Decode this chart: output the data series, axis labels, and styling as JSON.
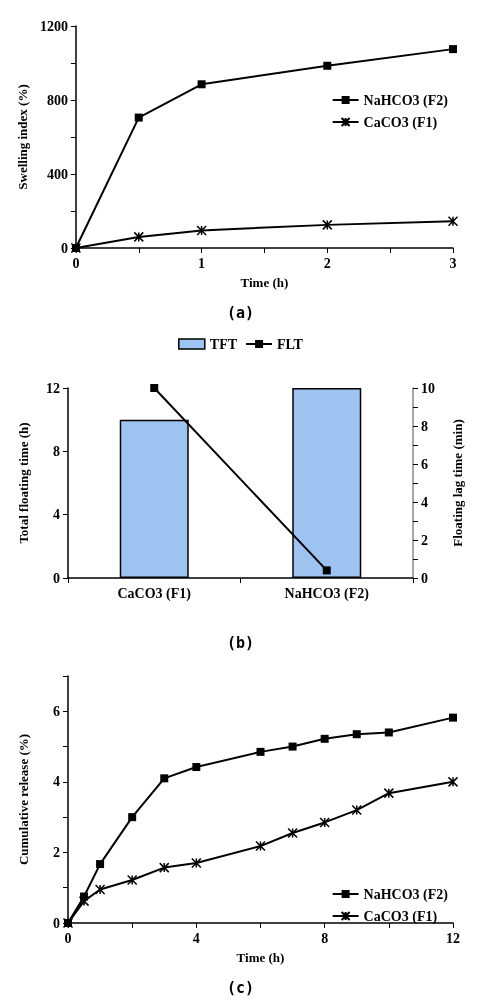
{
  "chart_data": [
    {
      "type": "line",
      "xlabel": "Time (h)",
      "ylabel": "Swelling index (%)",
      "annotations": [
        "(a)"
      ],
      "xlim": [
        0,
        3
      ],
      "xticks": [
        0,
        {
          "value": 0.5,
          "label": null
        },
        1,
        {
          "value": 1.5,
          "label": null
        },
        2,
        {
          "value": 2.5,
          "label": null
        },
        3
      ],
      "ylim": [
        0,
        1200
      ],
      "yticks": [
        0,
        {
          "value": 200,
          "label": null
        },
        400,
        {
          "value": 600,
          "label": null
        },
        800,
        {
          "value": 1000,
          "label": null
        },
        1200
      ],
      "grid": false,
      "legend": "right",
      "line_style": "solid",
      "series": [
        {
          "name": "NaHCO3 (F2)",
          "color": "#000000",
          "marker": "square",
          "x": [
            0,
            0.5,
            1,
            2,
            3
          ],
          "values": [
            0,
            705,
            885,
            985,
            1075
          ]
        },
        {
          "name": "CaCO3 (F1)",
          "color": "#000000",
          "marker": "cross",
          "x": [
            0,
            0.5,
            1,
            2,
            3
          ],
          "values": [
            0,
            60,
            95,
            125,
            145
          ]
        }
      ]
    },
    {
      "type": "bar",
      "ylabel": "Total floating time (h)",
      "y2label": "Floating lag time (min)",
      "annotations": [
        "(b)"
      ],
      "categories": [
        "CaCO3 (F1)",
        "NaHCO3 (F2)"
      ],
      "ylim": [
        0,
        12
      ],
      "yticks": [
        0,
        4,
        8,
        12
      ],
      "y2lim": [
        0,
        10
      ],
      "y2ticks": [
        0,
        {
          "value": 1,
          "label": null
        },
        2,
        {
          "value": 3,
          "label": null
        },
        4,
        {
          "value": 5,
          "label": null
        },
        6,
        {
          "value": 7,
          "label": null
        },
        8,
        {
          "value": 9,
          "label": null
        },
        10
      ],
      "grid": false,
      "legend": "top",
      "series": [
        {
          "name": "TFT",
          "type": "bar",
          "color": "#9fc3f0",
          "values": [
            10,
            12
          ]
        },
        {
          "name": "FLT",
          "type": "line",
          "axis": "y2",
          "color": "#000000",
          "marker": "square",
          "values": [
            10,
            0.4
          ]
        }
      ]
    },
    {
      "type": "line",
      "xlabel": "Time (h)",
      "ylabel": "Cumulative release (%)",
      "annotations": [
        "(c)"
      ],
      "xlim": [
        0,
        12
      ],
      "xticks": [
        0,
        {
          "value": 2,
          "label": null
        },
        4,
        {
          "value": 6,
          "label": null
        },
        8,
        {
          "value": 10,
          "label": null
        },
        12
      ],
      "ylim": [
        0,
        7
      ],
      "yticks": [
        0,
        {
          "value": 1,
          "label": null
        },
        2,
        {
          "value": 3,
          "label": null
        },
        4,
        {
          "value": 5,
          "label": null
        },
        6,
        {
          "value": 7,
          "label": null
        }
      ],
      "grid": false,
      "legend": "bottom right",
      "line_style": "solid",
      "series": [
        {
          "name": "NaHCO3 (F2)",
          "color": "#000000",
          "marker": "square",
          "x": [
            0,
            0.5,
            1,
            2,
            3,
            4,
            6,
            7,
            8,
            9,
            10,
            12
          ],
          "values": [
            0,
            0.75,
            1.67,
            3.0,
            4.1,
            4.42,
            4.85,
            5.0,
            5.22,
            5.35,
            5.4,
            5.82
          ]
        },
        {
          "name": "CaCO3 (F1)",
          "color": "#000000",
          "marker": "cross",
          "x": [
            0,
            0.5,
            1,
            2,
            3,
            4,
            6,
            7,
            8,
            9,
            10,
            12
          ],
          "values": [
            0,
            0.62,
            0.95,
            1.22,
            1.57,
            1.7,
            2.18,
            2.55,
            2.85,
            3.2,
            3.68,
            4.0
          ]
        }
      ]
    }
  ]
}
